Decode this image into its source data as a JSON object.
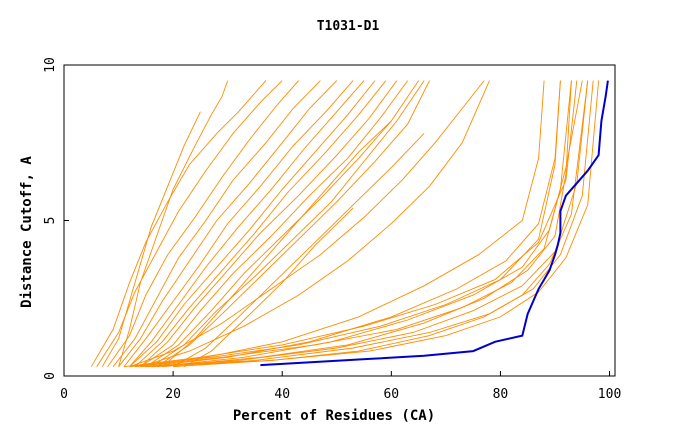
{
  "chart_data": {
    "type": "line",
    "title": "T1031-D1",
    "xlabel": "Percent of Residues (CA)",
    "ylabel": "Distance Cutoff, A",
    "xlim": [
      0,
      101
    ],
    "ylim": [
      0,
      10
    ],
    "x_ticks": [
      "0",
      "20",
      "40",
      "60",
      "80",
      "100"
    ],
    "y_ticks": [
      "0",
      "5",
      "10"
    ],
    "grid": false,
    "colors": {
      "models": "#ff8c00",
      "highlight": "#0000cc"
    },
    "highlight_series": {
      "x": [
        36,
        46,
        56,
        66,
        75,
        79,
        84,
        85,
        87,
        88,
        89,
        90,
        90.5,
        91,
        91,
        92,
        94,
        96,
        98,
        98.5,
        99.3,
        99.7
      ],
      "y": [
        0.35,
        0.45,
        0.55,
        0.65,
        0.8,
        1.1,
        1.3,
        2.0,
        2.8,
        3.1,
        3.4,
        3.9,
        4.2,
        4.6,
        5.3,
        5.8,
        6.2,
        6.6,
        7.1,
        8.2,
        9.0,
        9.5
      ]
    },
    "series": [
      {
        "x": [
          5,
          9,
          12,
          15,
          19,
          23,
          28,
          32,
          35,
          37
        ],
        "y": [
          0.3,
          1.5,
          3.0,
          4.3,
          5.6,
          6.8,
          7.8,
          8.5,
          9.1,
          9.5
        ]
      },
      {
        "x": [
          6,
          10,
          13,
          17,
          21,
          26,
          31,
          36,
          40
        ],
        "y": [
          0.3,
          1.4,
          2.7,
          4.0,
          5.3,
          6.6,
          7.8,
          8.8,
          9.5
        ]
      },
      {
        "x": [
          8,
          12,
          15,
          19,
          24,
          29,
          34,
          39,
          43
        ],
        "y": [
          0.3,
          1.3,
          2.6,
          3.9,
          5.1,
          6.4,
          7.6,
          8.7,
          9.5
        ]
      },
      {
        "x": [
          9,
          13,
          17,
          21,
          26,
          31,
          37,
          42,
          47
        ],
        "y": [
          0.3,
          1.2,
          2.5,
          3.8,
          5.0,
          6.3,
          7.5,
          8.6,
          9.5
        ]
      },
      {
        "x": [
          10,
          14,
          18,
          23,
          28,
          34,
          40,
          45,
          50
        ],
        "y": [
          0.3,
          1.2,
          2.4,
          3.7,
          5.0,
          6.2,
          7.5,
          8.6,
          9.5
        ]
      },
      {
        "x": [
          11,
          15,
          20,
          25,
          30,
          36,
          42,
          48,
          53
        ],
        "y": [
          0.3,
          1.2,
          2.4,
          3.6,
          4.9,
          6.1,
          7.4,
          8.5,
          9.5
        ]
      },
      {
        "x": [
          12,
          16,
          21,
          26,
          32,
          38,
          44,
          50,
          55
        ],
        "y": [
          0.3,
          1.1,
          2.3,
          3.5,
          4.8,
          6.0,
          7.3,
          8.5,
          9.5
        ]
      },
      {
        "x": [
          12,
          17,
          22,
          28,
          34,
          40,
          46,
          52,
          57
        ],
        "y": [
          0.3,
          1.1,
          2.3,
          3.5,
          4.7,
          6.0,
          7.2,
          8.4,
          9.5
        ]
      },
      {
        "x": [
          13,
          18,
          23,
          29,
          35,
          41,
          48,
          54,
          59
        ],
        "y": [
          0.3,
          1.1,
          2.2,
          3.4,
          4.6,
          5.9,
          7.2,
          8.4,
          9.5
        ]
      },
      {
        "x": [
          14,
          19,
          24,
          30,
          36,
          43,
          50,
          56,
          61
        ],
        "y": [
          0.3,
          1.1,
          2.2,
          3.4,
          4.6,
          5.8,
          7.1,
          8.3,
          9.5
        ]
      },
      {
        "x": [
          14,
          20,
          25,
          31,
          38,
          45,
          52,
          58,
          63
        ],
        "y": [
          0.3,
          1.0,
          2.1,
          3.3,
          4.5,
          5.8,
          7.0,
          8.3,
          9.5
        ]
      },
      {
        "x": [
          15,
          21,
          27,
          33,
          40,
          47,
          54,
          60,
          65
        ],
        "y": [
          0.3,
          1.0,
          2.1,
          3.3,
          4.5,
          5.7,
          7.0,
          8.2,
          9.5
        ]
      },
      {
        "x": [
          16,
          22,
          28,
          35,
          42,
          49,
          55,
          61,
          66
        ],
        "y": [
          0.3,
          1.0,
          2.1,
          3.2,
          4.4,
          5.6,
          6.9,
          8.2,
          9.5
        ]
      },
      {
        "x": [
          17,
          23,
          29,
          36,
          43,
          50,
          57,
          63,
          67
        ],
        "y": [
          0.3,
          1.0,
          2.0,
          3.2,
          4.4,
          5.6,
          6.9,
          8.1,
          9.5
        ]
      },
      {
        "x": [
          10,
          12,
          14,
          17,
          20,
          24,
          27,
          29,
          30
        ],
        "y": [
          0.3,
          1.5,
          3.0,
          4.5,
          6.0,
          7.4,
          8.4,
          9.0,
          9.5
        ]
      },
      {
        "x": [
          7,
          10,
          12,
          14,
          16,
          19,
          22,
          25
        ],
        "y": [
          0.3,
          1.2,
          2.4,
          3.6,
          4.8,
          6.1,
          7.4,
          8.5
        ]
      },
      {
        "x": [
          18,
          24,
          30,
          36,
          42,
          48,
          54,
          60
        ],
        "y": [
          0.3,
          1.2,
          2.4,
          3.6,
          4.8,
          6.0,
          7.2,
          8.2
        ]
      },
      {
        "x": [
          20,
          26,
          32,
          39,
          46,
          53,
          60,
          66
        ],
        "y": [
          0.3,
          0.9,
          1.9,
          3.1,
          4.3,
          5.5,
          6.7,
          7.8
        ]
      },
      {
        "x": [
          22,
          27,
          33,
          40,
          46,
          53
        ],
        "y": [
          0.3,
          0.8,
          1.8,
          3.0,
          4.2,
          5.4
        ]
      },
      {
        "x": [
          12,
          20,
          29,
          38,
          47,
          55,
          62,
          68,
          73,
          77
        ],
        "y": [
          0.3,
          0.8,
          1.7,
          2.8,
          3.9,
          5.1,
          6.3,
          7.5,
          8.6,
          9.5
        ]
      },
      {
        "x": [
          14,
          23,
          33,
          43,
          52,
          60,
          67,
          73,
          78
        ],
        "y": [
          0.3,
          0.8,
          1.6,
          2.6,
          3.7,
          4.9,
          6.1,
          7.5,
          9.5
        ]
      },
      {
        "x": [
          11,
          25,
          40,
          55,
          68,
          79,
          87,
          92,
          94
        ],
        "y": [
          0.3,
          0.6,
          1.0,
          1.6,
          2.3,
          3.1,
          4.3,
          6.3,
          9.5
        ]
      },
      {
        "x": [
          12,
          27,
          43,
          58,
          70,
          80,
          87,
          90,
          91
        ],
        "y": [
          0.3,
          0.6,
          1.0,
          1.6,
          2.3,
          3.1,
          4.4,
          6.8,
          9.5
        ]
      },
      {
        "x": [
          13,
          29,
          46,
          61,
          73,
          82,
          88,
          91,
          93
        ],
        "y": [
          0.3,
          0.6,
          1.0,
          1.5,
          2.2,
          3.0,
          4.1,
          6.0,
          9.5
        ]
      },
      {
        "x": [
          14,
          32,
          50,
          64,
          75,
          84,
          90,
          94,
          96
        ],
        "y": [
          0.3,
          0.5,
          0.9,
          1.4,
          2.1,
          2.9,
          4.0,
          6.2,
          9.5
        ]
      },
      {
        "x": [
          15,
          35,
          53,
          67,
          78,
          86,
          91,
          95,
          97
        ],
        "y": [
          0.3,
          0.5,
          0.9,
          1.4,
          2.0,
          2.8,
          3.9,
          5.8,
          9.5
        ]
      },
      {
        "x": [
          16,
          38,
          56,
          70,
          80,
          87,
          92,
          96,
          98
        ],
        "y": [
          0.3,
          0.5,
          0.8,
          1.3,
          1.9,
          2.7,
          3.8,
          5.5,
          9.5
        ]
      },
      {
        "x": [
          18,
          36,
          52,
          66,
          77,
          85,
          90,
          92,
          93
        ],
        "y": [
          0.3,
          0.6,
          1.0,
          1.7,
          2.5,
          3.4,
          4.5,
          6.5,
          9.5
        ]
      },
      {
        "x": [
          17,
          33,
          49,
          63,
          75,
          84,
          89,
          92,
          95
        ],
        "y": [
          0.3,
          0.6,
          1.1,
          1.8,
          2.6,
          3.5,
          4.7,
          6.7,
          9.5
        ]
      },
      {
        "x": [
          15,
          30,
          45,
          60,
          72,
          81,
          87,
          90,
          91
        ],
        "y": [
          0.3,
          0.6,
          1.1,
          1.9,
          2.8,
          3.7,
          4.9,
          7.0,
          9.5
        ]
      },
      {
        "x": [
          20,
          38,
          54,
          67,
          77,
          84,
          89,
          93,
          96
        ],
        "y": [
          0.3,
          0.5,
          0.8,
          1.3,
          1.9,
          2.6,
          3.6,
          5.2,
          9.5
        ]
      },
      {
        "x": [
          13,
          26,
          40,
          54,
          66,
          76,
          84,
          87,
          88
        ],
        "y": [
          0.3,
          0.6,
          1.1,
          1.9,
          2.9,
          3.9,
          5.0,
          7.0,
          9.5
        ]
      }
    ]
  }
}
